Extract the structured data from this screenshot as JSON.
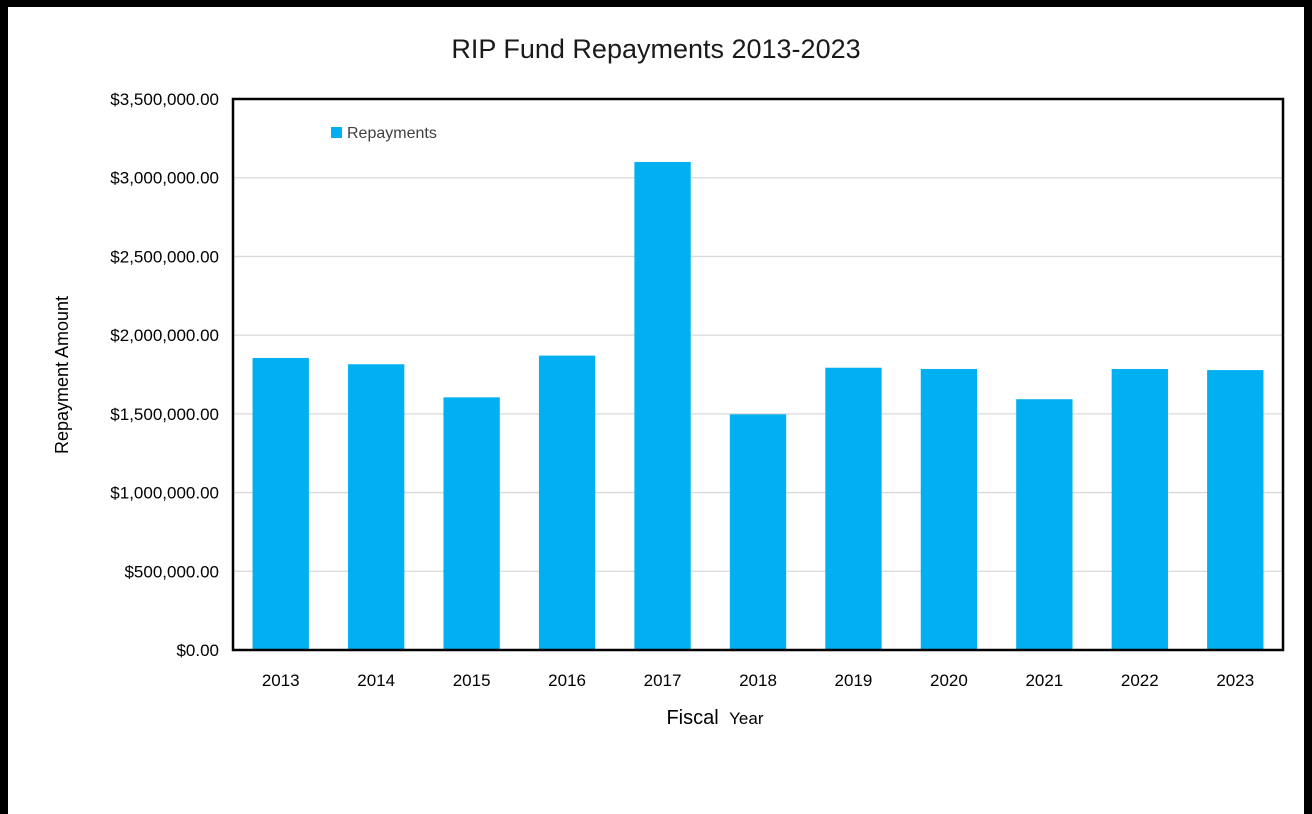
{
  "chart_data": {
    "type": "bar",
    "title": "RIP Fund Repayments 2013-2023",
    "xlabel_parts": [
      "Fiscal",
      "Year"
    ],
    "ylabel": "Repayment Amount",
    "legend": {
      "label": "Repayments",
      "position": "top-left"
    },
    "ylim": [
      0,
      3500000
    ],
    "yticks": [
      0,
      500000,
      1000000,
      1500000,
      2000000,
      2500000,
      3000000,
      3500000
    ],
    "ytick_labels": [
      "$0.00",
      "$500,000.00",
      "$1,000,000.00",
      "$1,500,000.00",
      "$2,000,000.00",
      "$2,500,000.00",
      "$3,000,000.00",
      "$3,500,000.00"
    ],
    "grid": true,
    "categories": [
      "2013",
      "2014",
      "2015",
      "2016",
      "2017",
      "2018",
      "2019",
      "2020",
      "2021",
      "2022",
      "2023"
    ],
    "series": [
      {
        "name": "Repayments",
        "color": "#00b0f0",
        "values": [
          1855000,
          1815000,
          1605000,
          1870000,
          3100000,
          1497000,
          1793000,
          1785000,
          1593000,
          1785000,
          1778000
        ]
      }
    ]
  }
}
